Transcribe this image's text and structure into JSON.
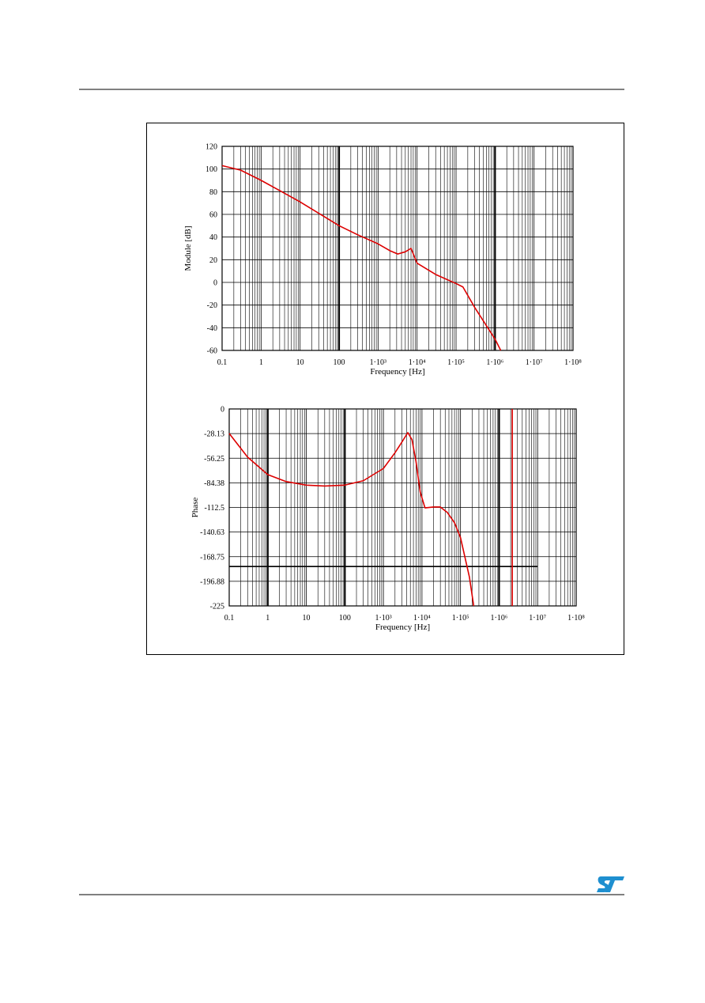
{
  "chart_data": [
    {
      "type": "line",
      "xlabel": "Frequency [Hz]",
      "ylabel": "Module [dB]",
      "xscale": "log",
      "grid": true,
      "xlim": [
        0.1,
        100000000
      ],
      "ylim": [
        -60,
        120
      ],
      "xticks": [
        0.1,
        1,
        10,
        100,
        {
          "value": 1000,
          "label": "1·10³"
        },
        {
          "value": 10000,
          "label": "1·10⁴"
        },
        {
          "value": 100000,
          "label": "1·10⁵"
        },
        {
          "value": 1000000,
          "label": "1·10⁶"
        },
        {
          "value": 10000000,
          "label": "1·10⁷"
        },
        {
          "value": 100000000,
          "label": "1·10⁸"
        }
      ],
      "yticks": [
        -60,
        -40,
        -20,
        0,
        20,
        40,
        60,
        80,
        100,
        120
      ],
      "bold_x": [
        100,
        1000000
      ],
      "x": [
        0.1,
        0.3,
        1,
        3,
        10,
        30,
        100,
        300,
        1000,
        2000,
        3200,
        5000,
        7000,
        10000,
        30000,
        100000,
        150000,
        300000,
        1000000,
        1400000
      ],
      "series": [
        {
          "color": "#dd0000",
          "values": [
            103,
            99,
            90,
            81,
            71,
            61,
            50,
            42,
            34,
            28,
            25,
            27,
            30,
            17,
            7,
            -1,
            -4,
            -22,
            -50,
            -60
          ]
        }
      ]
    },
    {
      "type": "line",
      "xlabel": "Frequency [Hz]",
      "ylabel": "Phase",
      "xscale": "log",
      "grid": true,
      "xlim": [
        0.1,
        100000000
      ],
      "ylim": [
        -225,
        0
      ],
      "xticks": [
        0.1,
        1,
        10,
        100,
        {
          "value": 1000,
          "label": "1·10³"
        },
        {
          "value": 10000,
          "label": "1·10⁴"
        },
        {
          "value": 100000,
          "label": "1·10⁵"
        },
        {
          "value": 1000000,
          "label": "1·10⁶"
        },
        {
          "value": 10000000,
          "label": "1·10⁷"
        },
        {
          "value": 100000000,
          "label": "1·10⁸"
        }
      ],
      "yticks": [
        -225,
        {
          "value": -196.875,
          "label": "-196.88"
        },
        -168.75,
        {
          "value": -140.625,
          "label": "-140.63"
        },
        -112.5,
        {
          "value": -84.375,
          "label": "-84.38"
        },
        -56.25,
        {
          "value": -28.125,
          "label": "-28.13"
        },
        0
      ],
      "bold_x": [
        1,
        100,
        1000000
      ],
      "hline": {
        "y": -180,
        "x": [
          0.1,
          10000000
        ]
      },
      "vline": {
        "x": 2200000,
        "color": "#dd0000"
      },
      "x": [
        0.1,
        0.3,
        1,
        3,
        10,
        30,
        100,
        300,
        1000,
        2000,
        3000,
        4300,
        5500,
        7000,
        9000,
        12000,
        20000,
        30000,
        45000,
        70000,
        100000,
        170000,
        220000
      ],
      "series": [
        {
          "color": "#dd0000",
          "values": [
            -28,
            -55,
            -75,
            -83,
            -87,
            -88,
            -87,
            -82,
            -68,
            -50,
            -38,
            -27,
            -35,
            -60,
            -95,
            -113,
            -112,
            -112,
            -118,
            -130,
            -147,
            -192,
            -225
          ]
        }
      ]
    }
  ]
}
